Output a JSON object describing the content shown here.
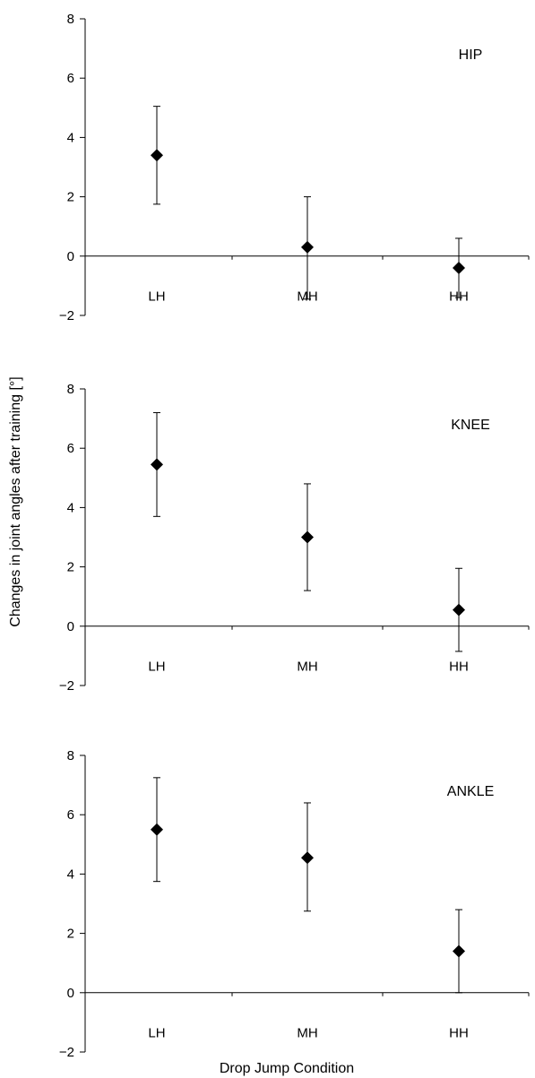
{
  "figure": {
    "ylabel": "Changes in joint angles after training [°]",
    "xlabel": "Drop Jump Condition"
  },
  "chart_data": [
    {
      "type": "scatter",
      "title": "HIP",
      "categories": [
        "LH",
        "MH",
        "HH"
      ],
      "values": [
        3.4,
        0.3,
        -0.4
      ],
      "error_low": [
        1.75,
        -1.45,
        -1.4
      ],
      "error_high": [
        5.05,
        2.0,
        0.6
      ],
      "ylim": [
        -2,
        8
      ],
      "yticks": [
        -2,
        0,
        2,
        4,
        6,
        8
      ],
      "grid": false,
      "marker_color": "#000000"
    },
    {
      "type": "scatter",
      "title": "KNEE",
      "categories": [
        "LH",
        "MH",
        "HH"
      ],
      "values": [
        5.45,
        3.0,
        0.55
      ],
      "error_low": [
        3.7,
        1.2,
        -0.85
      ],
      "error_high": [
        7.2,
        4.8,
        1.95
      ],
      "ylim": [
        -2,
        8
      ],
      "yticks": [
        -2,
        0,
        2,
        4,
        6,
        8
      ],
      "grid": false,
      "marker_color": "#000000"
    },
    {
      "type": "scatter",
      "title": "ANKLE",
      "categories": [
        "LH",
        "MH",
        "HH"
      ],
      "values": [
        5.5,
        4.55,
        1.4
      ],
      "error_low": [
        3.75,
        2.75,
        0.0
      ],
      "error_high": [
        7.25,
        6.4,
        2.8
      ],
      "ylim": [
        -2,
        8
      ],
      "yticks": [
        -2,
        0,
        2,
        4,
        6,
        8
      ],
      "grid": false,
      "marker_color": "#000000"
    }
  ]
}
